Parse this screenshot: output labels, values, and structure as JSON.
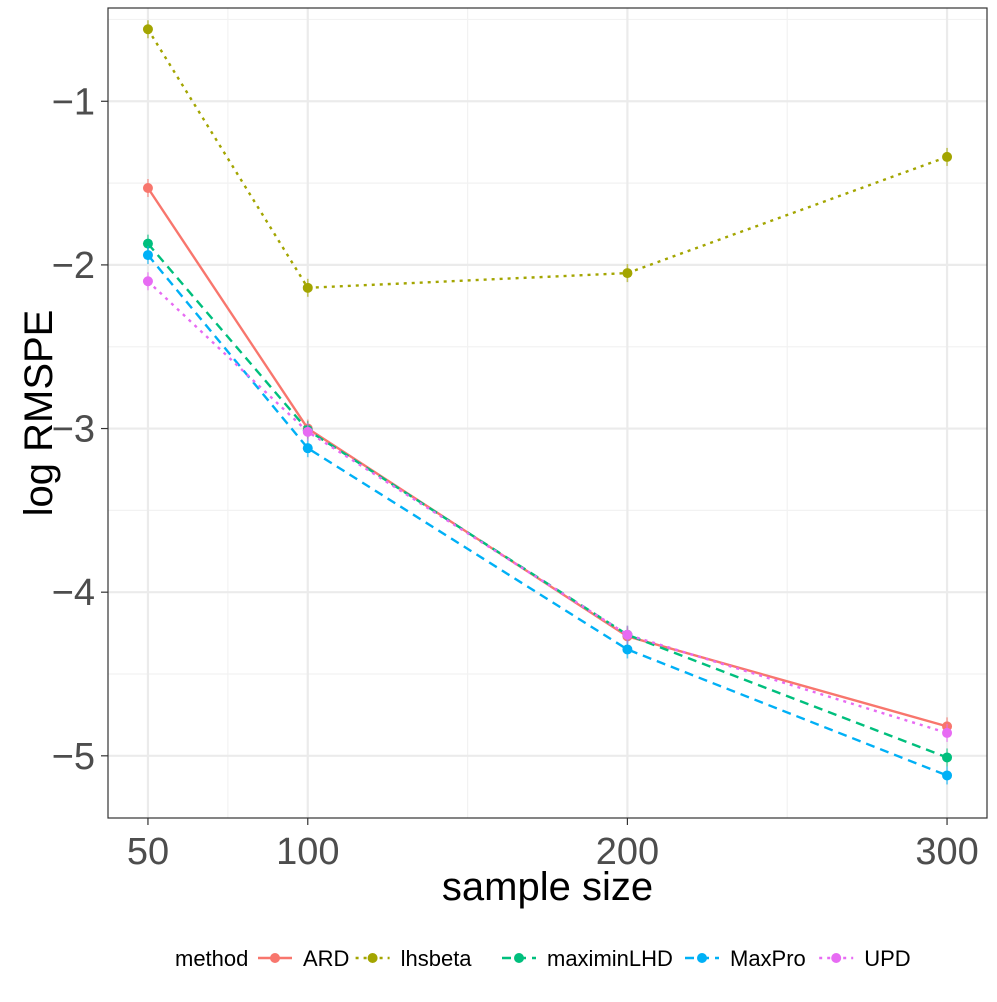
{
  "chart_data": {
    "type": "line",
    "xlabel": "sample size",
    "ylabel": "log RMSPE",
    "x": [
      50,
      100,
      200,
      300
    ],
    "xticks": [
      50,
      100,
      200,
      300
    ],
    "xticklabels": [
      "50",
      "100",
      "200",
      "300"
    ],
    "yticks": [
      -5,
      -4,
      -3,
      -2,
      -1
    ],
    "yticklabels": [
      "−5",
      "−4",
      "−3",
      "−2",
      "−1"
    ],
    "xlim": [
      37.5,
      312.5
    ],
    "ylim": [
      -5.38,
      -0.43
    ],
    "grid": true,
    "legend_placement": "bottom",
    "legend_title": "method",
    "series": [
      {
        "name": "ARD",
        "color": "#F8766D",
        "dash": "solid",
        "values": [
          -1.53,
          -3.0,
          -4.27,
          -4.82
        ]
      },
      {
        "name": "lhsbeta",
        "color": "#A3A500",
        "dash": "dotted",
        "values": [
          -0.56,
          -2.14,
          -2.05,
          -1.34
        ]
      },
      {
        "name": "maximinLHD",
        "color": "#00BF7D",
        "dash": "dashed",
        "values": [
          -1.87,
          -3.01,
          -4.26,
          -5.01
        ]
      },
      {
        "name": "MaxPro",
        "color": "#00B0F6",
        "dash": "dashed",
        "values": [
          -1.94,
          -3.12,
          -4.35,
          -5.12
        ]
      },
      {
        "name": "UPD",
        "color": "#E76BF3",
        "dash": "dotted",
        "values": [
          -2.1,
          -3.02,
          -4.26,
          -4.86
        ]
      }
    ]
  }
}
